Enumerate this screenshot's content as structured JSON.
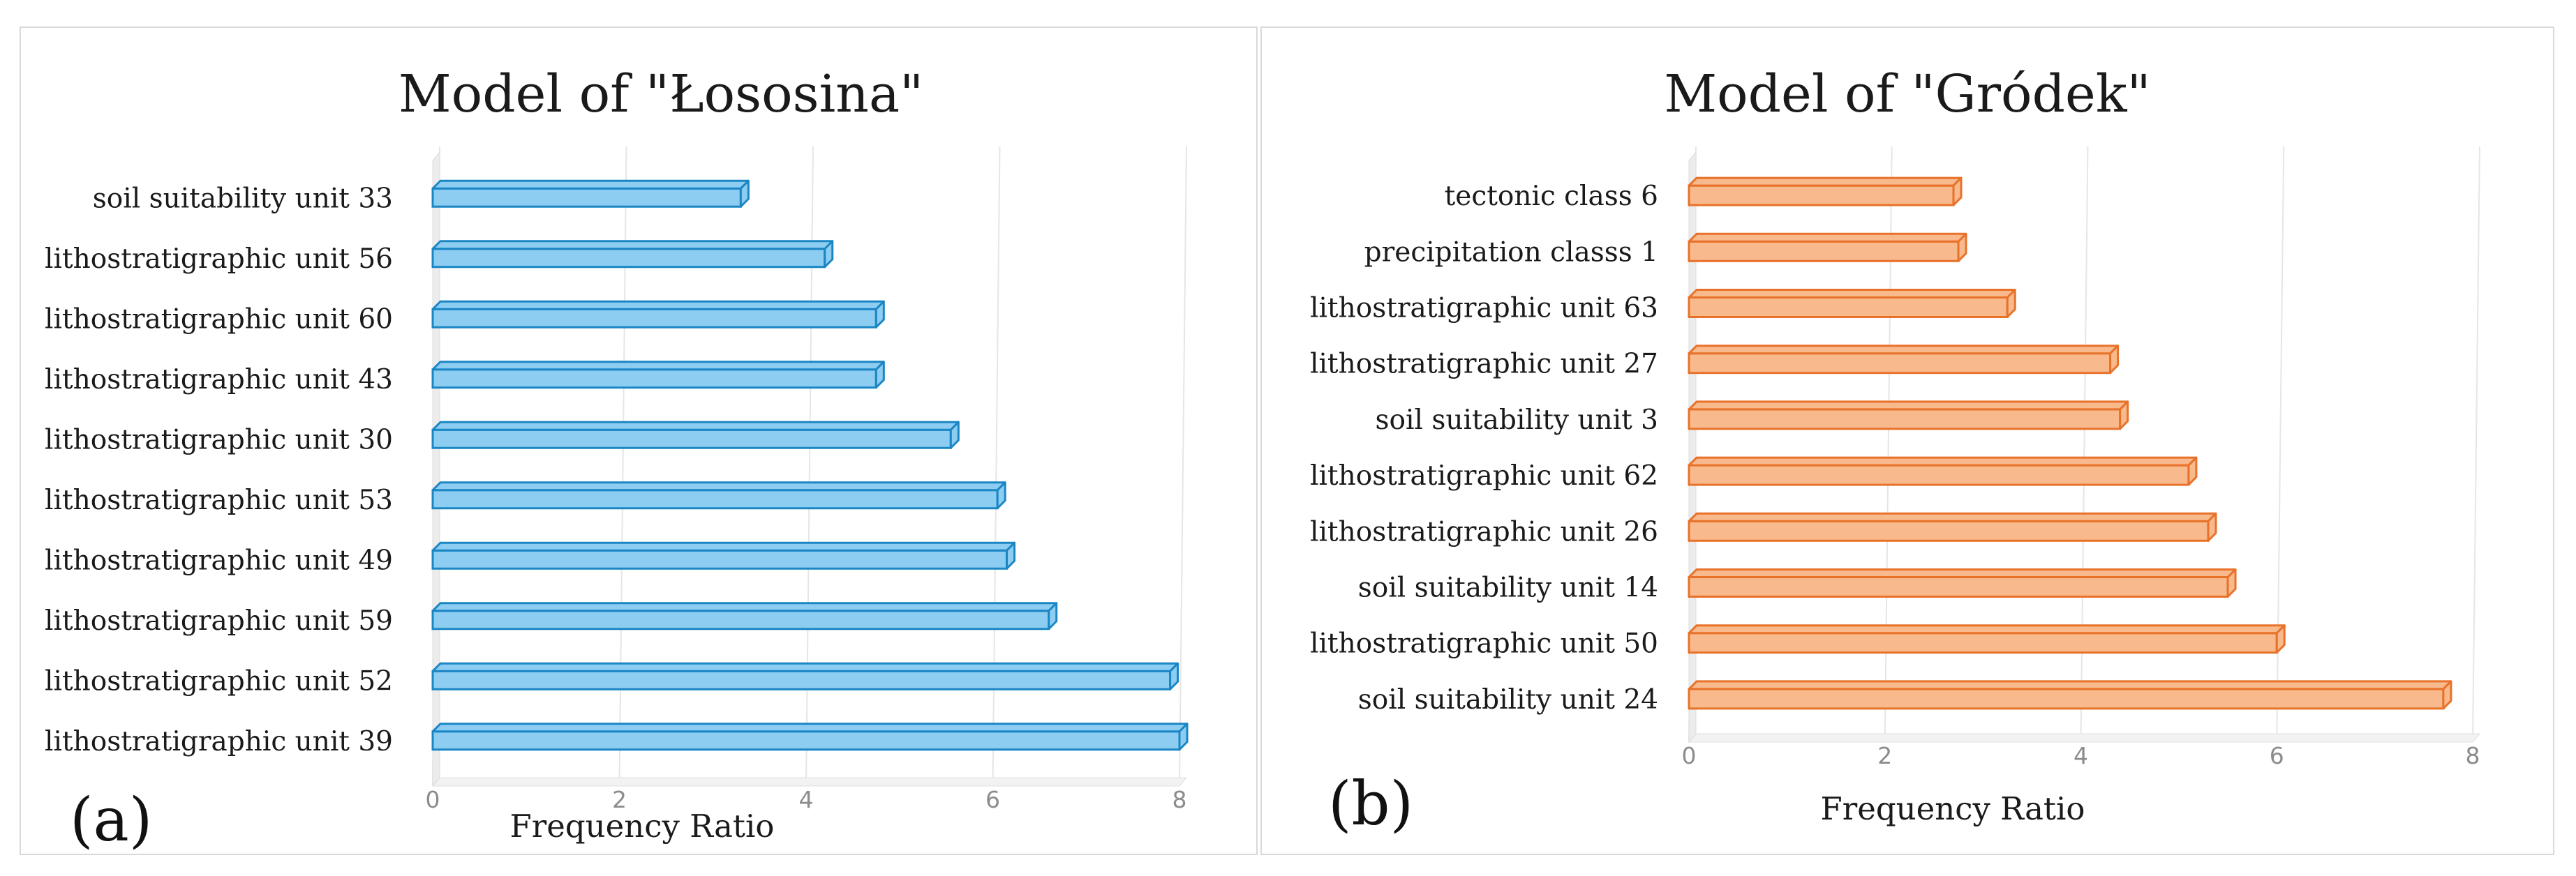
{
  "chart_data": [
    {
      "type": "bar",
      "orientation": "horizontal",
      "title": "Model of \"Łososina\"",
      "panel_label": "(a)",
      "xlabel": "Frequency Ratio",
      "ylabel": "",
      "xlim": [
        0,
        8
      ],
      "xticks": [
        "0",
        "2",
        "4",
        "6",
        "8"
      ],
      "grid": true,
      "color": "#8ecdf2",
      "edge_color": "#1a86c4",
      "categories": [
        "soil suitability unit  33",
        "lithostratigraphic unit  56",
        "lithostratigraphic unit  60",
        "lithostratigraphic unit  43",
        "lithostratigraphic unit  30",
        "lithostratigraphic unit  53",
        "lithostratigraphic unit  49",
        "lithostratigraphic unit  59",
        "lithostratigraphic unit  52",
        "lithostratigraphic unit  39"
      ],
      "values": [
        3.3,
        4.2,
        4.75,
        4.75,
        5.55,
        6.05,
        6.15,
        6.6,
        7.9,
        8.0
      ]
    },
    {
      "type": "bar",
      "orientation": "horizontal",
      "title": "Model of \"Gródek\"",
      "panel_label": "(b)",
      "xlabel": "Frequency Ratio",
      "ylabel": "",
      "xlim": [
        0,
        8
      ],
      "xticks": [
        "0",
        "2",
        "4",
        "6",
        "8"
      ],
      "grid": true,
      "color": "#f8b98c",
      "edge_color": "#e8722a",
      "categories": [
        "tectonic class 6",
        "precipitation classs  1",
        "lithostratigraphic unit  63",
        "lithostratigraphic unit  27",
        "soil suitability unit  3",
        "lithostratigraphic unit  62",
        "lithostratigraphic unit  26",
        "soil suitability unit   14",
        "lithostratigraphic unit  50",
        "soil suitability unit  24"
      ],
      "values": [
        2.7,
        2.75,
        3.25,
        4.3,
        4.4,
        5.1,
        5.3,
        5.5,
        6.0,
        7.7
      ]
    }
  ]
}
